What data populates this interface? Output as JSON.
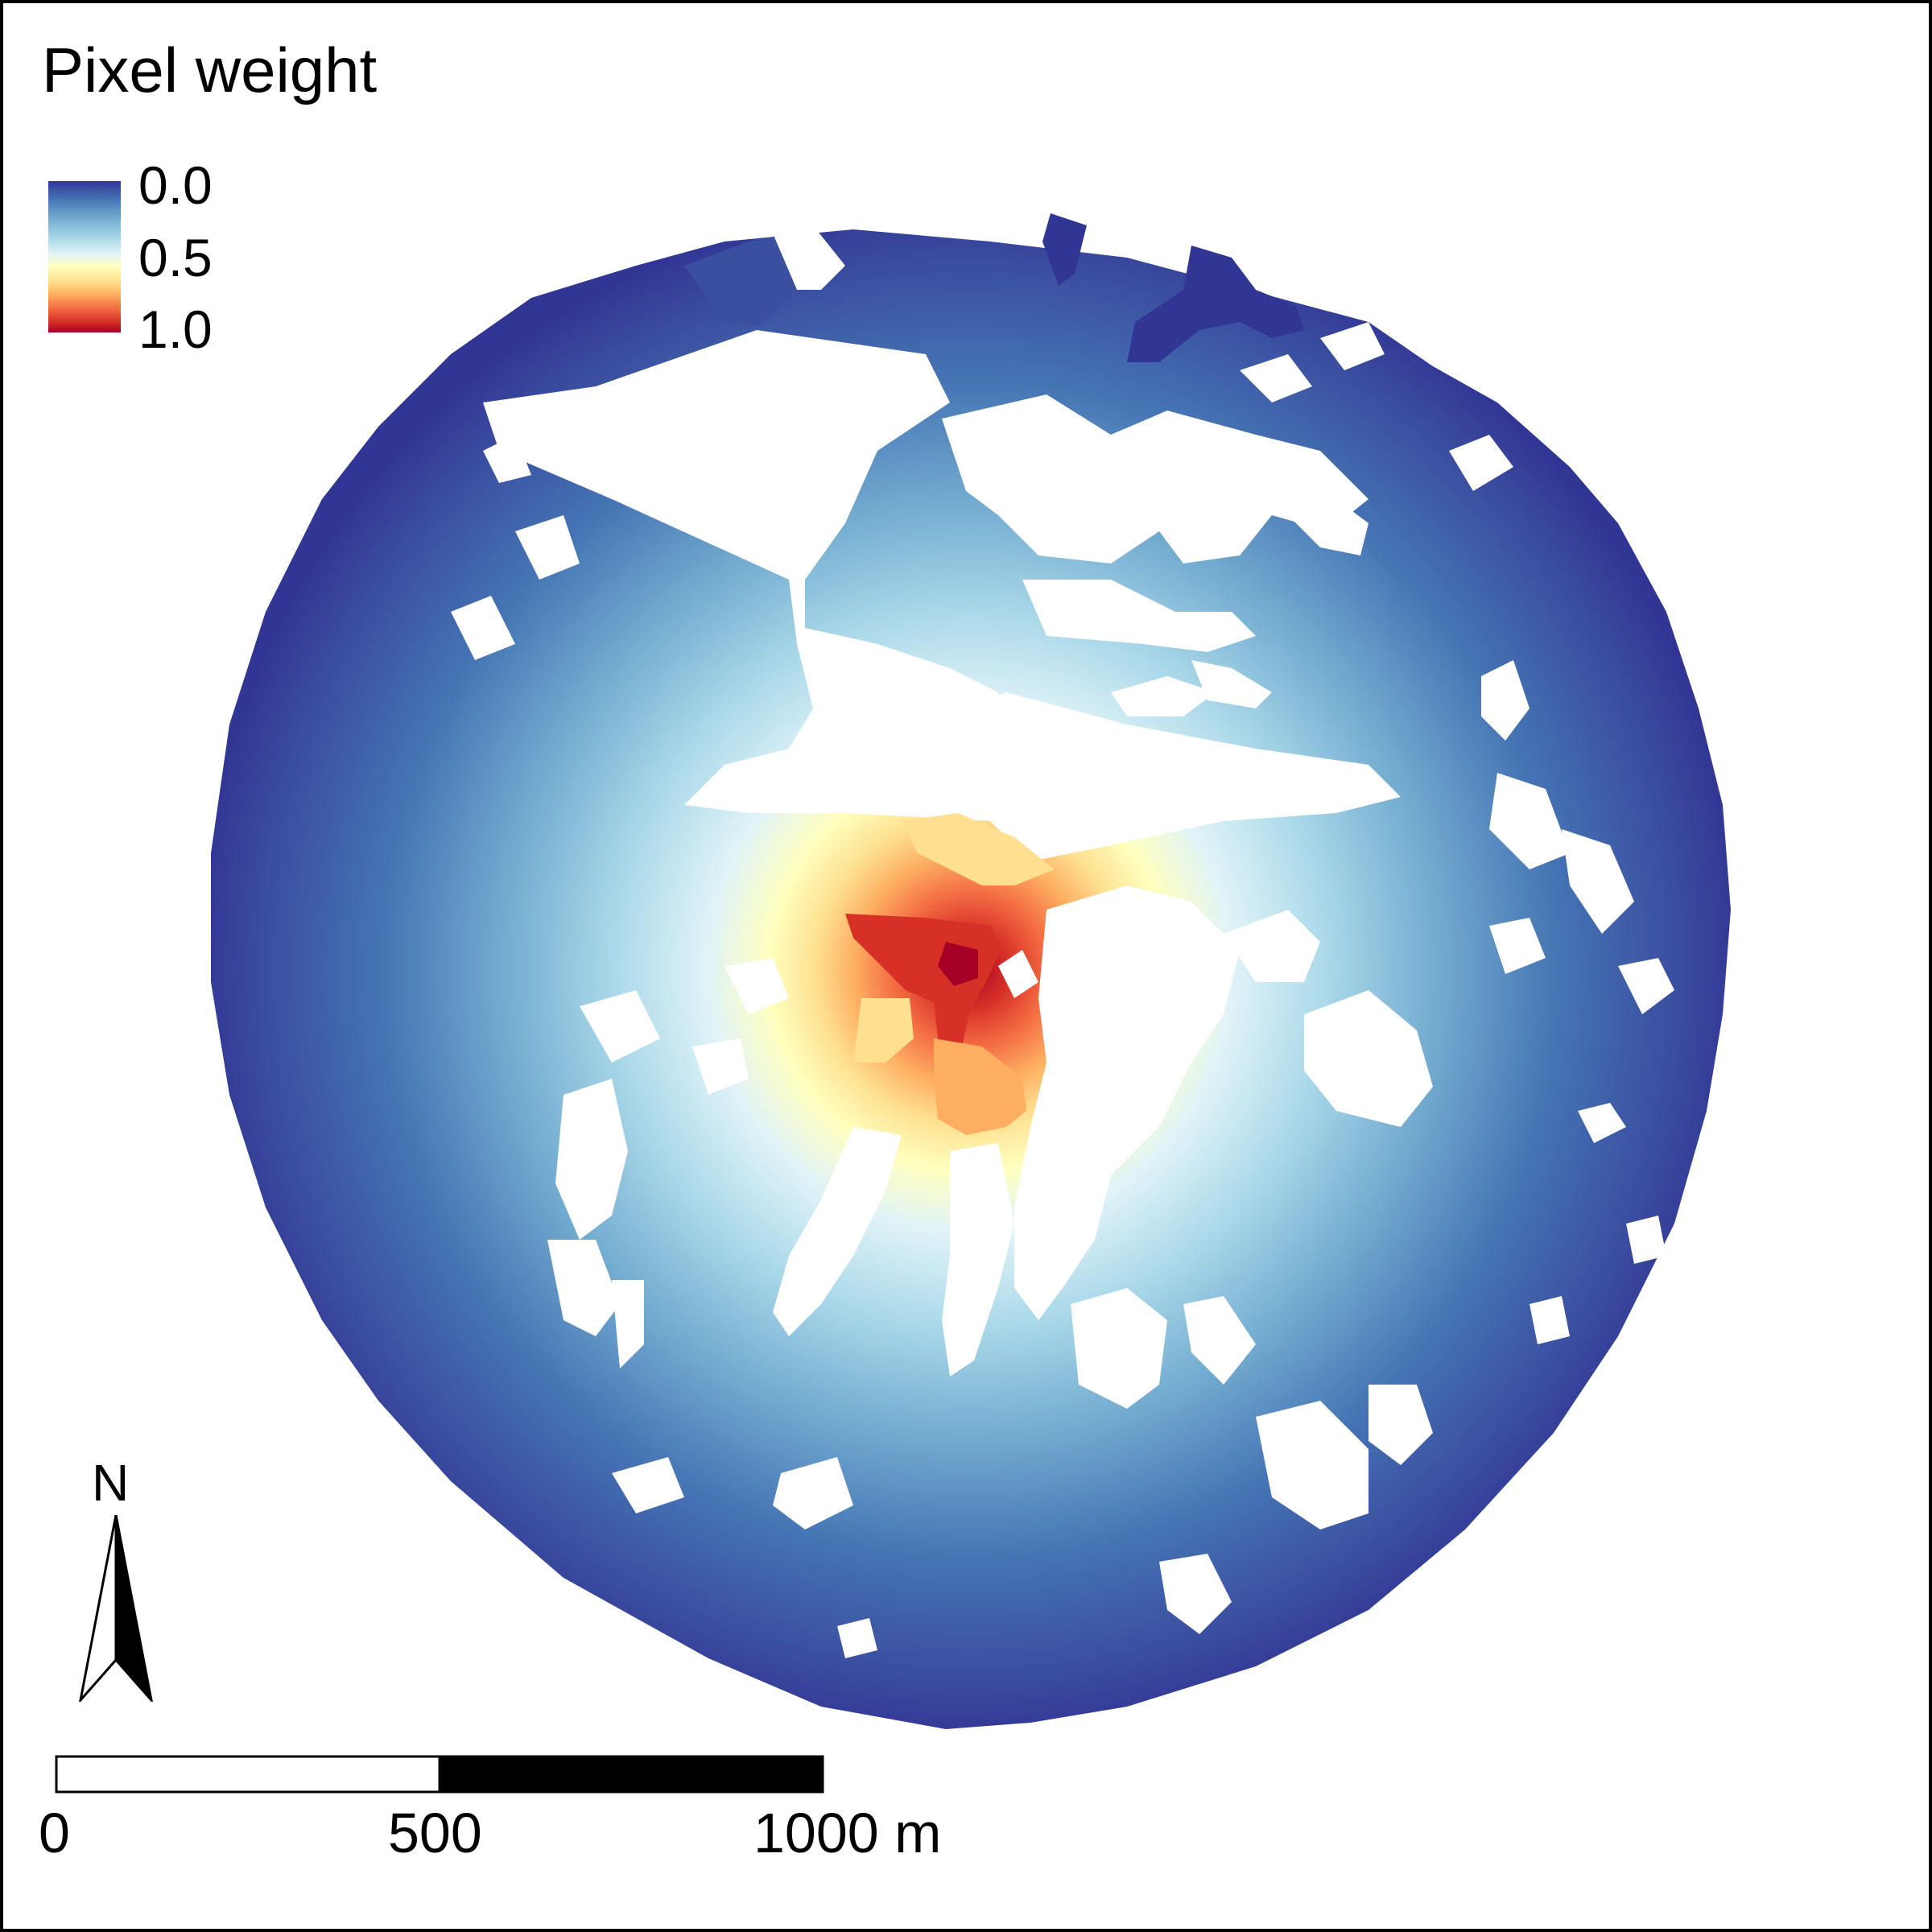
{
  "legend": {
    "title": "Pixel weight",
    "ticks": [
      "0.0",
      "0.5",
      "1.0"
    ],
    "color_scale": [
      "#313695",
      "#4575b4",
      "#74add1",
      "#abd9e9",
      "#e0f3f8",
      "#ffffbf",
      "#fee090",
      "#fdae61",
      "#f46d43",
      "#d73027",
      "#a50026"
    ]
  },
  "north_arrow": {
    "label": "N"
  },
  "scale_bar": {
    "labels": [
      "0",
      "500",
      "1000 m"
    ],
    "unit": "m"
  },
  "colors": {
    "low": "#313695",
    "mid": "#ffffbf",
    "high": "#a50026",
    "background": "#ffffff"
  }
}
